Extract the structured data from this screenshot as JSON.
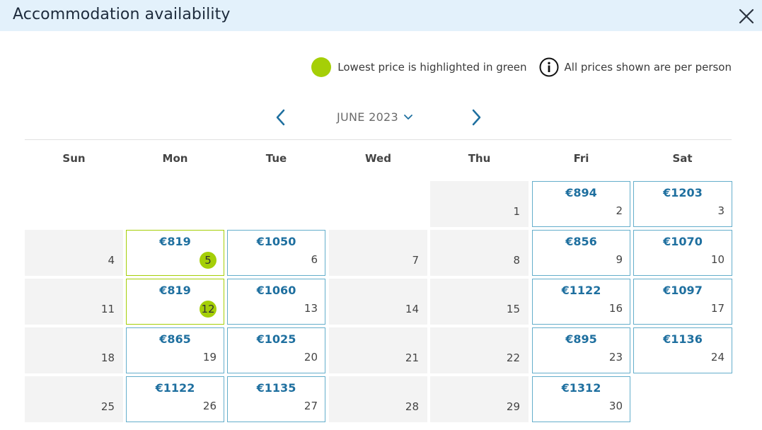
{
  "dialog": {
    "title": "Accommodation availability",
    "close_icon": "close-icon"
  },
  "legend": {
    "lowest_text": "Lowest price is highlighted in green",
    "lowest_color": "#a5cf07",
    "info_text": "All prices shown are per person",
    "info_icon": "info-icon"
  },
  "calendar": {
    "month_label": "JUNE 2023",
    "weekdays": [
      "Sun",
      "Mon",
      "Tue",
      "Wed",
      "Thu",
      "Fri",
      "Sat"
    ],
    "price_color": "#1e6f9f",
    "first_weekday_index": 4,
    "days": [
      {
        "day": "1",
        "price": null,
        "lowest": false
      },
      {
        "day": "2",
        "price": "€894",
        "lowest": false
      },
      {
        "day": "3",
        "price": "€1203",
        "lowest": false
      },
      {
        "day": "4",
        "price": null,
        "lowest": false
      },
      {
        "day": "5",
        "price": "€819",
        "lowest": true
      },
      {
        "day": "6",
        "price": "€1050",
        "lowest": false
      },
      {
        "day": "7",
        "price": null,
        "lowest": false
      },
      {
        "day": "8",
        "price": null,
        "lowest": false
      },
      {
        "day": "9",
        "price": "€856",
        "lowest": false
      },
      {
        "day": "10",
        "price": "€1070",
        "lowest": false
      },
      {
        "day": "11",
        "price": null,
        "lowest": false
      },
      {
        "day": "12",
        "price": "€819",
        "lowest": true
      },
      {
        "day": "13",
        "price": "€1060",
        "lowest": false
      },
      {
        "day": "14",
        "price": null,
        "lowest": false
      },
      {
        "day": "15",
        "price": null,
        "lowest": false
      },
      {
        "day": "16",
        "price": "€1122",
        "lowest": false
      },
      {
        "day": "17",
        "price": "€1097",
        "lowest": false
      },
      {
        "day": "18",
        "price": null,
        "lowest": false
      },
      {
        "day": "19",
        "price": "€865",
        "lowest": false
      },
      {
        "day": "20",
        "price": "€1025",
        "lowest": false
      },
      {
        "day": "21",
        "price": null,
        "lowest": false
      },
      {
        "day": "22",
        "price": null,
        "lowest": false
      },
      {
        "day": "23",
        "price": "€895",
        "lowest": false
      },
      {
        "day": "24",
        "price": "€1136",
        "lowest": false
      },
      {
        "day": "25",
        "price": null,
        "lowest": false
      },
      {
        "day": "26",
        "price": "€1122",
        "lowest": false
      },
      {
        "day": "27",
        "price": "€1135",
        "lowest": false
      },
      {
        "day": "28",
        "price": null,
        "lowest": false
      },
      {
        "day": "29",
        "price": null,
        "lowest": false
      },
      {
        "day": "30",
        "price": "€1312",
        "lowest": false
      }
    ]
  }
}
